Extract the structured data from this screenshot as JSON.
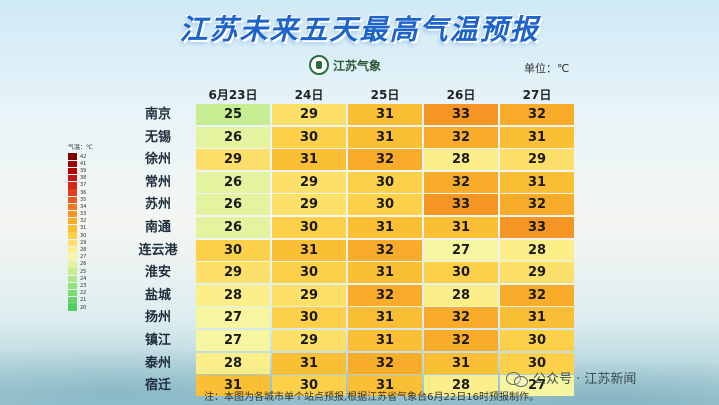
{
  "title": "江苏未来五天最高气温预报",
  "logo_text": "江苏气象",
  "unit_label": "单位：℃",
  "legend": {
    "title": "气温：℃",
    "levels": [
      {
        "label": "42",
        "color": "#7f0000"
      },
      {
        "label": "41",
        "color": "#9e0000"
      },
      {
        "label": "39",
        "color": "#b00000"
      },
      {
        "label": "38",
        "color": "#c41414"
      },
      {
        "label": "37",
        "color": "#d42a1a"
      },
      {
        "label": "36",
        "color": "#e04020"
      },
      {
        "label": "35",
        "color": "#ea5a22"
      },
      {
        "label": "34",
        "color": "#f07a22"
      },
      {
        "label": "33",
        "color": "#f59524"
      },
      {
        "label": "32",
        "color": "#f8ac2a"
      },
      {
        "label": "31",
        "color": "#fbbf35"
      },
      {
        "label": "30",
        "color": "#fdd04a"
      },
      {
        "label": "29",
        "color": "#fde06a"
      },
      {
        "label": "28",
        "color": "#fcef8a"
      },
      {
        "label": "27",
        "color": "#f6f5a0"
      },
      {
        "label": "26",
        "color": "#e3f3a0"
      },
      {
        "label": "25",
        "color": "#c8ee94"
      },
      {
        "label": "24",
        "color": "#aee888"
      },
      {
        "label": "23",
        "color": "#94e27c"
      },
      {
        "label": "22",
        "color": "#7cdb72"
      },
      {
        "label": "21",
        "color": "#66d46a"
      },
      {
        "label": "20",
        "color": "#52cc62"
      }
    ]
  },
  "dates": [
    "6月23日",
    "24日",
    "25日",
    "26日",
    "27日"
  ],
  "rows": [
    {
      "city": "南京",
      "temps": [
        25,
        29,
        31,
        33,
        32
      ]
    },
    {
      "city": "无锡",
      "temps": [
        26,
        30,
        31,
        32,
        31
      ]
    },
    {
      "city": "徐州",
      "temps": [
        29,
        31,
        32,
        28,
        29
      ]
    },
    {
      "city": "常州",
      "temps": [
        26,
        29,
        30,
        32,
        31
      ]
    },
    {
      "city": "苏州",
      "temps": [
        26,
        29,
        30,
        33,
        32
      ]
    },
    {
      "city": "南通",
      "temps": [
        26,
        30,
        31,
        31,
        33
      ]
    },
    {
      "city": "连云港",
      "temps": [
        30,
        31,
        32,
        27,
        28
      ]
    },
    {
      "city": "淮安",
      "temps": [
        29,
        30,
        31,
        30,
        29
      ]
    },
    {
      "city": "盐城",
      "temps": [
        28,
        29,
        32,
        28,
        32
      ]
    },
    {
      "city": "扬州",
      "temps": [
        27,
        30,
        31,
        32,
        31
      ]
    },
    {
      "city": "镇江",
      "temps": [
        27,
        29,
        31,
        32,
        30
      ]
    },
    {
      "city": "泰州",
      "temps": [
        28,
        31,
        32,
        31,
        30
      ]
    },
    {
      "city": "宿迁",
      "temps": [
        31,
        30,
        31,
        28,
        27
      ]
    }
  ],
  "note": "注：本图为各城市单个站点预报,根据江苏省气象台6月22日16时预报制作。",
  "watermark": "公众号 · 江苏新闻"
}
